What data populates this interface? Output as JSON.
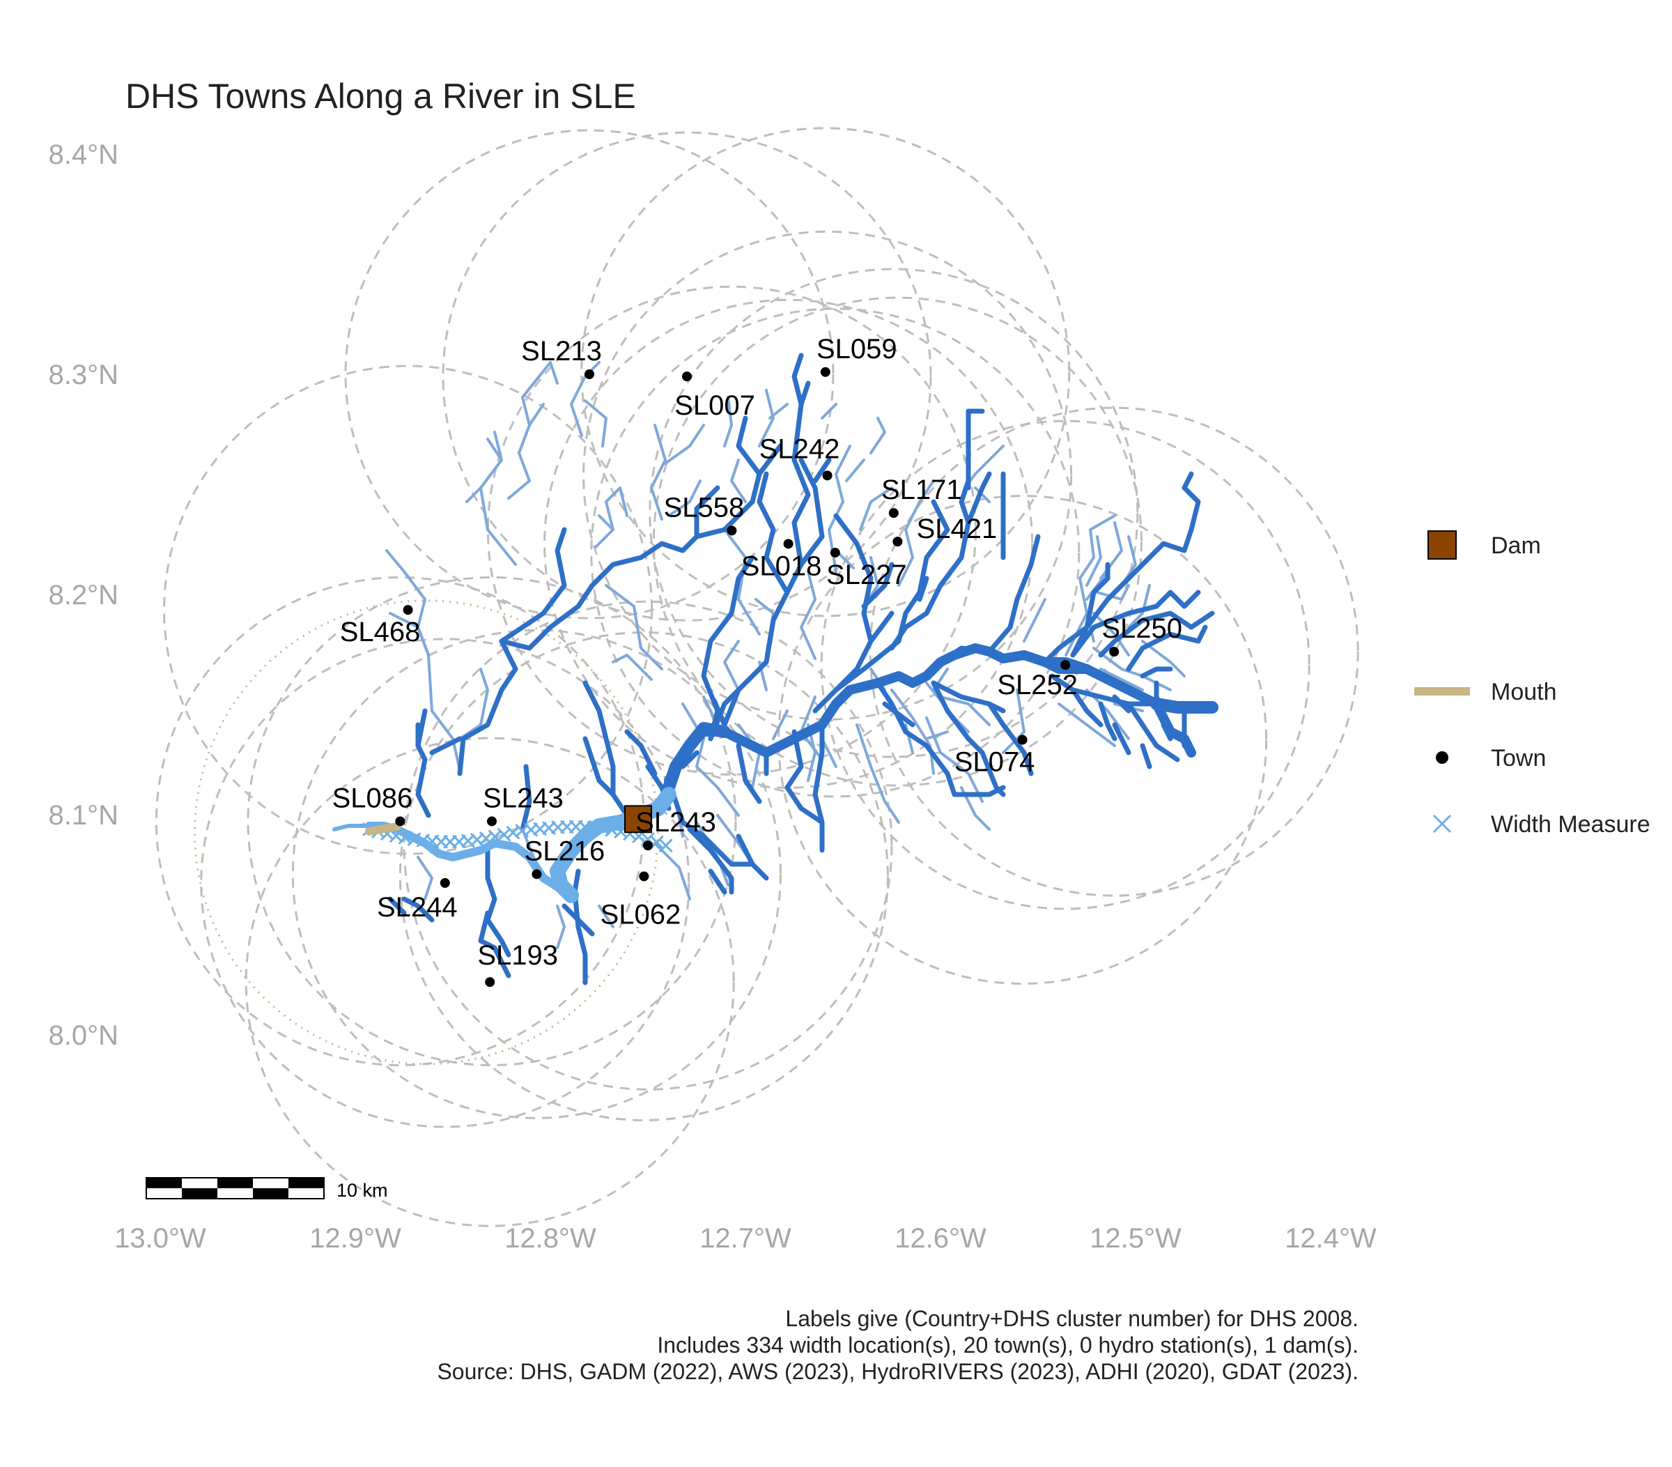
{
  "title": "DHS Towns Along a River in SLE",
  "axes": {
    "x_ticks": [
      "13.0°W",
      "12.9°W",
      "12.8°W",
      "12.7°W",
      "12.6°W",
      "12.5°W",
      "12.4°W"
    ],
    "x_values": [
      -13.0,
      -12.9,
      -12.8,
      -12.7,
      -12.6,
      -12.5,
      -12.4
    ],
    "y_ticks": [
      "8.0°N",
      "8.1°N",
      "8.2°N",
      "8.3°N",
      "8.4°N"
    ],
    "y_values": [
      8.0,
      8.1,
      8.2,
      8.3,
      8.4
    ],
    "xlim": [
      -13.0,
      -12.4
    ],
    "ylim": [
      8.0,
      8.4
    ],
    "grid": false
  },
  "legend": {
    "position": "right",
    "items": [
      {
        "key": "dam",
        "label": "Dam",
        "color": "#8B4500"
      },
      {
        "key": "mouth",
        "label": "Mouth",
        "color": "#C8B584"
      },
      {
        "key": "town",
        "label": "Town",
        "color": "#000000"
      },
      {
        "key": "width",
        "label": "Width Measure",
        "color": "#6BAEE8"
      }
    ]
  },
  "scalebar": {
    "label": "10 km"
  },
  "caption": [
    "Labels give (Country+DHS cluster number) for DHS 2008.",
    "Includes 334 width location(s), 20 town(s), 0 hydro station(s), 1 dam(s).",
    "Source: DHS, GADM (2022), AWS (2023), HydroRIVERS (2023), ADHI (2020), GDAT (2023)."
  ],
  "colors": {
    "river_main": "#2E6FC7",
    "river_minor": "#7FA8D9",
    "river_wide": "#6BAEE8",
    "buffer": "#BDBDBD",
    "axis_text": "#A6A6A6"
  },
  "chart_data": {
    "type": "scatter",
    "towns": [
      {
        "label": "SL213",
        "lon": -12.78,
        "lat": 8.3
      },
      {
        "label": "SL007",
        "lon": -12.73,
        "lat": 8.299
      },
      {
        "label": "SL059",
        "lon": -12.659,
        "lat": 8.301
      },
      {
        "label": "SL242",
        "lon": -12.658,
        "lat": 8.254
      },
      {
        "label": "SL171",
        "lon": -12.624,
        "lat": 8.237
      },
      {
        "label": "SL558",
        "lon": -12.707,
        "lat": 8.229
      },
      {
        "label": "SL421",
        "lon": -12.622,
        "lat": 8.224
      },
      {
        "label": "SL018",
        "lon": -12.678,
        "lat": 8.223
      },
      {
        "label": "SL227",
        "lon": -12.654,
        "lat": 8.219
      },
      {
        "label": "SL468",
        "lon": -12.873,
        "lat": 8.193
      },
      {
        "label": "SL250",
        "lon": -12.511,
        "lat": 8.174
      },
      {
        "label": "SL252",
        "lon": -12.536,
        "lat": 8.168
      },
      {
        "label": "SL074",
        "lon": -12.558,
        "lat": 8.134
      },
      {
        "label": "SL086",
        "lon": -12.877,
        "lat": 8.097
      },
      {
        "label": "SL243",
        "lon": -12.83,
        "lat": 8.097
      },
      {
        "label": "SL243",
        "lon": -12.75,
        "lat": 8.086
      },
      {
        "label": "SL216",
        "lon": -12.807,
        "lat": 8.073
      },
      {
        "label": "SL062",
        "lon": -12.752,
        "lat": 8.072
      },
      {
        "label": "SL244",
        "lon": -12.854,
        "lat": 8.069
      },
      {
        "label": "SL193",
        "lon": -12.831,
        "lat": 8.024
      }
    ],
    "dam": {
      "lon": -12.755,
      "lat": 8.098
    },
    "mouth": {
      "lon": -12.885,
      "lat": 8.092
    },
    "width_measure_count": 334,
    "buffers": [
      {
        "lon": -12.78,
        "lat": 8.3,
        "radius_deg": 0.125
      },
      {
        "lon": -12.73,
        "lat": 8.299,
        "radius_deg": 0.125
      },
      {
        "lon": -12.659,
        "lat": 8.301,
        "radius_deg": 0.125
      },
      {
        "lon": -12.658,
        "lat": 8.254,
        "radius_deg": 0.125
      },
      {
        "lon": -12.624,
        "lat": 8.237,
        "radius_deg": 0.125
      },
      {
        "lon": -12.707,
        "lat": 8.229,
        "radius_deg": 0.125
      },
      {
        "lon": -12.622,
        "lat": 8.224,
        "radius_deg": 0.125
      },
      {
        "lon": -12.678,
        "lat": 8.223,
        "radius_deg": 0.125
      },
      {
        "lon": -12.654,
        "lat": 8.219,
        "radius_deg": 0.125
      },
      {
        "lon": -12.873,
        "lat": 8.193,
        "radius_deg": 0.125
      },
      {
        "lon": -12.511,
        "lat": 8.174,
        "radius_deg": 0.125
      },
      {
        "lon": -12.536,
        "lat": 8.168,
        "radius_deg": 0.125
      },
      {
        "lon": -12.558,
        "lat": 8.134,
        "radius_deg": 0.125
      },
      {
        "lon": -12.877,
        "lat": 8.097,
        "radius_deg": 0.125
      },
      {
        "lon": -12.83,
        "lat": 8.097,
        "radius_deg": 0.125
      },
      {
        "lon": -12.75,
        "lat": 8.086,
        "radius_deg": 0.125
      },
      {
        "lon": -12.807,
        "lat": 8.073,
        "radius_deg": 0.125
      },
      {
        "lon": -12.752,
        "lat": 8.072,
        "radius_deg": 0.125
      },
      {
        "lon": -12.854,
        "lat": 8.069,
        "radius_deg": 0.125
      },
      {
        "lon": -12.831,
        "lat": 8.024,
        "radius_deg": 0.125
      }
    ],
    "mouth_buffer": {
      "lon": -12.885,
      "lat": 8.092,
      "radius_deg": 0.125
    }
  }
}
